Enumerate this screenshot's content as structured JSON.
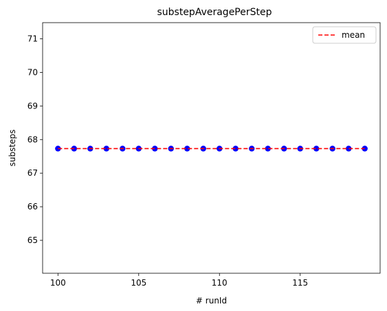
{
  "chart_data": {
    "type": "scatter",
    "title": "substepAveragePerStep",
    "xlabel": "# runId",
    "ylabel": "substeps",
    "xlim": [
      99.05,
      119.95
    ],
    "ylim": [
      64.02,
      71.48
    ],
    "xticks": [
      100,
      105,
      110,
      115
    ],
    "yticks": [
      65,
      66,
      67,
      68,
      69,
      70,
      71
    ],
    "grid": false,
    "legend_position": "top-right",
    "series": [
      {
        "kind": "points",
        "color": "#0000ff",
        "x": [
          100,
          101,
          102,
          103,
          104,
          105,
          106,
          107,
          108,
          109,
          110,
          111,
          112,
          113,
          114,
          115,
          116,
          117,
          118,
          119
        ],
        "y": [
          67.73,
          67.73,
          67.73,
          67.73,
          67.73,
          67.73,
          67.73,
          67.73,
          67.73,
          67.73,
          67.73,
          67.73,
          67.73,
          67.73,
          67.73,
          67.73,
          67.73,
          67.73,
          67.73,
          67.73
        ]
      },
      {
        "kind": "line",
        "name": "mean",
        "color": "#ff0000",
        "line_style": "dashed",
        "x": [
          100,
          119
        ],
        "y": [
          67.73,
          67.73
        ]
      }
    ]
  }
}
